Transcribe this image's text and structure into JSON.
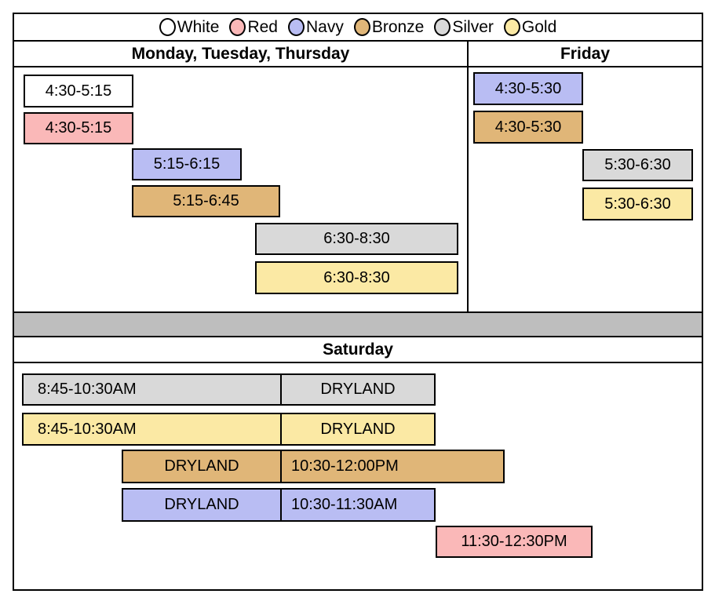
{
  "colors": {
    "white": "#FFFFFF",
    "red": "#FAB8B8",
    "navy": "#B9BDF3",
    "bronze": "#E0B678",
    "silver": "#D9D9D9",
    "gold": "#FBE9A4",
    "separator": "#BEBEBE"
  },
  "legend": {
    "items": [
      {
        "label": "White",
        "color": "#FFFFFF"
      },
      {
        "label": "Red",
        "color": "#FAB8B8"
      },
      {
        "label": "Navy",
        "color": "#B9BDF3"
      },
      {
        "label": "Bronze",
        "color": "#E0B678"
      },
      {
        "label": "Silver",
        "color": "#D9D9D9"
      },
      {
        "label": "Gold",
        "color": "#FBE9A4"
      }
    ]
  },
  "headers": {
    "weekdays": "Monday, Tuesday, Thursday",
    "friday": "Friday",
    "saturday": "Saturday"
  },
  "weekday_blocks": [
    {
      "group": "White",
      "label": "4:30-5:15"
    },
    {
      "group": "Red",
      "label": "4:30-5:15"
    },
    {
      "group": "Navy",
      "label": "5:15-6:15"
    },
    {
      "group": "Bronze",
      "label": "5:15-6:45"
    },
    {
      "group": "Silver",
      "label": "6:30-8:30"
    },
    {
      "group": "Gold",
      "label": "6:30-8:30"
    }
  ],
  "friday_blocks": [
    {
      "group": "Navy",
      "label": "4:30-5:30"
    },
    {
      "group": "Bronze",
      "label": "4:30-5:30"
    },
    {
      "group": "Silver",
      "label": "5:30-6:30"
    },
    {
      "group": "Gold",
      "label": "5:30-6:30"
    }
  ],
  "saturday_blocks": [
    {
      "group": "Silver",
      "cells": [
        "8:45-10:30AM",
        "DRYLAND"
      ]
    },
    {
      "group": "Gold",
      "cells": [
        "8:45-10:30AM",
        "DRYLAND"
      ]
    },
    {
      "group": "Bronze",
      "cells": [
        "DRYLAND",
        "10:30-12:00PM"
      ]
    },
    {
      "group": "Navy",
      "cells": [
        "DRYLAND",
        "10:30-11:30AM"
      ]
    },
    {
      "group": "Red",
      "cells": [
        "11:30-12:30PM"
      ]
    }
  ]
}
